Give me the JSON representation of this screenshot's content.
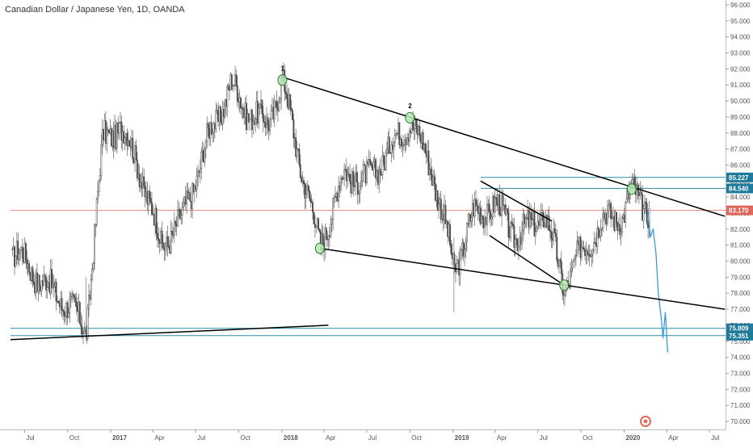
{
  "header": {
    "symbol_title": "Canadian Dollar / Japanese Yen, 1D, OANDA"
  },
  "colors": {
    "candle_up": "#4a4a4a",
    "candle_down": "#4a4a4a",
    "trendline": "#000000",
    "level_line": "#2a8ca8",
    "price_line": "#e0685a",
    "price_badge": "#e0685a",
    "level_badge": "#1f7a9c",
    "projection": "#3a9ad9",
    "marker_fill": "#b8e6b8",
    "marker_stroke": "#2b7a2b"
  },
  "chart_data": {
    "type": "line",
    "series_kind": "candlestick",
    "ylim": [
      70,
      96
    ],
    "x_ticks": [
      "Jul",
      "Oct",
      "2017",
      "Apr",
      "Jul",
      "Oct",
      "2018",
      "Apr",
      "Jul",
      "Oct",
      "2019",
      "Apr",
      "Jul",
      "Oct",
      "2020",
      "Apr",
      "Jul"
    ],
    "y_ticks": [
      "96.000",
      "95.000",
      "94.000",
      "93.000",
      "92.000",
      "91.000",
      "90.000",
      "89.000",
      "88.000",
      "87.000",
      "86.000",
      "85.000",
      "84.000",
      "83.000",
      "82.000",
      "81.000",
      "80.000",
      "79.000",
      "78.000",
      "77.000",
      "76.000",
      "75.000",
      "74.000",
      "73.000",
      "72.000",
      "71.000",
      "70.000"
    ],
    "price_key_points": [
      {
        "x": "2016-06-15",
        "y": 80.5
      },
      {
        "x": "2016-08-15",
        "y": 78.5
      },
      {
        "x": "2016-10-05",
        "y": 77.2
      },
      {
        "x": "2016-11-09",
        "y": 75.6
      },
      {
        "x": "2016-12-15",
        "y": 87.5
      },
      {
        "x": "2017-01-20",
        "y": 88.5
      },
      {
        "x": "2017-03-01",
        "y": 86.0
      },
      {
        "x": "2017-04-18",
        "y": 81.0
      },
      {
        "x": "2017-06-01",
        "y": 82.5
      },
      {
        "x": "2017-08-01",
        "y": 88.0
      },
      {
        "x": "2017-09-15",
        "y": 91.0
      },
      {
        "x": "2017-10-15",
        "y": 89.5
      },
      {
        "x": "2017-12-01",
        "y": 88.5
      },
      {
        "x": "2018-01-02",
        "y": 91.3
      },
      {
        "x": "2018-02-10",
        "y": 86.0
      },
      {
        "x": "2018-03-23",
        "y": 81.0
      },
      {
        "x": "2018-05-15",
        "y": 85.5
      },
      {
        "x": "2018-07-01",
        "y": 85.0
      },
      {
        "x": "2018-10-01",
        "y": 88.8
      },
      {
        "x": "2018-11-15",
        "y": 86.0
      },
      {
        "x": "2018-12-24",
        "y": 81.0
      },
      {
        "x": "2019-01-03",
        "y": 79.5
      },
      {
        "x": "2019-02-15",
        "y": 83.0
      },
      {
        "x": "2019-04-01",
        "y": 83.5
      },
      {
        "x": "2019-05-20",
        "y": 81.5
      },
      {
        "x": "2019-07-15",
        "y": 83.0
      },
      {
        "x": "2019-08-26",
        "y": 78.5
      },
      {
        "x": "2019-10-01",
        "y": 80.5
      },
      {
        "x": "2019-11-15",
        "y": 82.5
      },
      {
        "x": "2019-12-31",
        "y": 83.0
      },
      {
        "x": "2020-01-17",
        "y": 84.3
      },
      {
        "x": "2020-02-25",
        "y": 83.17
      }
    ],
    "projection_points": [
      {
        "x": "2020-02-20",
        "y": 83.17
      },
      {
        "x": "2020-02-26",
        "y": 81.5
      },
      {
        "x": "2020-03-03",
        "y": 82.0
      },
      {
        "x": "2020-03-09",
        "y": 80.5
      },
      {
        "x": "2020-03-14",
        "y": 78.0
      },
      {
        "x": "2020-03-20",
        "y": 76.5
      },
      {
        "x": "2020-03-24",
        "y": 75.2
      },
      {
        "x": "2020-03-29",
        "y": 76.8
      },
      {
        "x": "2020-04-03",
        "y": 74.3
      }
    ],
    "trendlines": [
      {
        "name": "upper-channel-line",
        "points": [
          {
            "x": "2018-01-01",
            "y": 91.5
          },
          {
            "x": "2020-08-03",
            "y": 82.8
          }
        ]
      },
      {
        "name": "lower-channel-line",
        "points": [
          {
            "x": "2018-03-23",
            "y": 80.8
          },
          {
            "x": "2020-08-03",
            "y": 77.0
          }
        ]
      },
      {
        "name": "wedge-upper-line",
        "points": [
          {
            "x": "2019-03-01",
            "y": 85.0
          },
          {
            "x": "2019-07-31",
            "y": 82.5
          }
        ]
      },
      {
        "name": "wedge-lower-line",
        "points": [
          {
            "x": "2019-03-20",
            "y": 81.6
          },
          {
            "x": "2019-08-26",
            "y": 78.5
          }
        ]
      },
      {
        "name": "support-diagonal-line",
        "points": [
          {
            "x": "2016-06-01",
            "y": 75.1
          },
          {
            "x": "2018-04-10",
            "y": 76.0
          }
        ]
      }
    ],
    "markers": [
      {
        "label": "1",
        "x": "2018-01-02",
        "y": 91.3
      },
      {
        "label": "2",
        "x": "2018-10-01",
        "y": 88.95
      },
      {
        "label": "",
        "x": "2018-03-23",
        "y": 80.8
      },
      {
        "label": "",
        "x": "2019-08-26",
        "y": 78.5
      },
      {
        "label": "",
        "x": "2020-01-17",
        "y": 84.5
      }
    ],
    "horizontal_levels": [
      {
        "value": 85.227,
        "label": "85.227",
        "x_start": "2019-03-01"
      },
      {
        "value": 84.54,
        "label": "84.540",
        "x_start": "2019-03-01"
      },
      {
        "value": 83.17,
        "label": "83.170",
        "x_start": "2016-06-01",
        "kind": "price"
      },
      {
        "value": 75.809,
        "label": "75.809",
        "x_start": "2016-06-01"
      },
      {
        "value": 75.351,
        "label": "75.351",
        "x_start": "2016-06-01"
      }
    ]
  }
}
